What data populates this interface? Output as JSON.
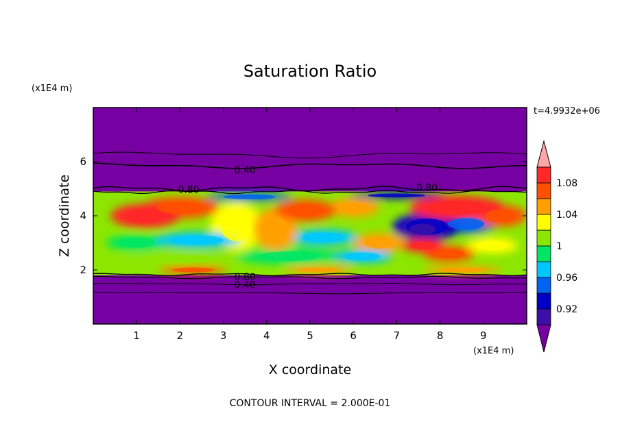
{
  "chart_data": {
    "type": "heatmap",
    "title": "Saturation Ratio",
    "xlabel": "X coordinate",
    "ylabel": "Z coordinate",
    "x_unit": "(x1E4 m)",
    "y_unit": "(x1E4 m)",
    "time_label": "t=4.9932e+06",
    "footer": "CONTOUR INTERVAL = 2.000E-01",
    "xlim": [
      0,
      10
    ],
    "ylim": [
      0,
      8
    ],
    "x_ticks": [
      1,
      2,
      3,
      4,
      5,
      6,
      7,
      8,
      9
    ],
    "y_ticks": [
      2,
      4,
      6
    ],
    "grid": false,
    "legend_position": "right",
    "background_color": "#7700A2",
    "colorbar": {
      "levels": [
        0.92,
        0.94,
        0.96,
        0.98,
        1.0,
        1.02,
        1.04,
        1.06,
        1.08
      ],
      "tick_labels": [
        "0.92",
        "0.96",
        "1",
        "1.04",
        "1.08"
      ],
      "colors": [
        "#7700A2",
        "#3C10A8",
        "#0000C8",
        "#0064F0",
        "#00C8FF",
        "#00E664",
        "#8CE600",
        "#FFFF00",
        "#FFA000",
        "#FF5000",
        "#FF2828",
        "#FFA6A6"
      ]
    },
    "contour_labels": [
      {
        "text": "0.40",
        "x": 3.5,
        "z": 5.7
      },
      {
        "text": "0.80",
        "x": 2.2,
        "z": 4.98
      },
      {
        "text": "0.80",
        "x": 7.7,
        "z": 5.05
      },
      {
        "text": "0.80",
        "x": 3.5,
        "z": 1.75
      },
      {
        "text": "0.40",
        "x": 3.5,
        "z": 1.45
      }
    ],
    "moist_layer": {
      "z_bottom": 1.8,
      "z_top": 4.9
    },
    "features": [
      {
        "x": 1.2,
        "z": 4.0,
        "rx": 0.8,
        "rz": 0.45,
        "value": 1.09
      },
      {
        "x": 2.0,
        "z": 4.3,
        "rx": 0.9,
        "rz": 0.4,
        "value": 1.07
      },
      {
        "x": 4.9,
        "z": 4.2,
        "rx": 0.7,
        "rz": 0.4,
        "value": 1.06
      },
      {
        "x": 6.0,
        "z": 4.3,
        "rx": 0.6,
        "rz": 0.35,
        "value": 1.05
      },
      {
        "x": 8.4,
        "z": 4.3,
        "rx": 1.1,
        "rz": 0.45,
        "value": 1.08
      },
      {
        "x": 9.4,
        "z": 4.0,
        "rx": 0.6,
        "rz": 0.4,
        "value": 1.06
      },
      {
        "x": 3.3,
        "z": 3.6,
        "rx": 0.6,
        "rz": 0.9,
        "value": 1.02
      },
      {
        "x": 4.2,
        "z": 3.5,
        "rx": 0.5,
        "rz": 0.8,
        "value": 1.05
      },
      {
        "x": 2.4,
        "z": 3.1,
        "rx": 1.0,
        "rz": 0.3,
        "value": 0.96
      },
      {
        "x": 1.0,
        "z": 3.0,
        "rx": 0.7,
        "rz": 0.3,
        "value": 0.98
      },
      {
        "x": 5.3,
        "z": 3.2,
        "rx": 0.8,
        "rz": 0.3,
        "value": 0.97
      },
      {
        "x": 7.7,
        "z": 3.6,
        "rx": 0.8,
        "rz": 0.5,
        "value": 0.92
      },
      {
        "x": 7.6,
        "z": 3.5,
        "rx": 0.5,
        "rz": 0.35,
        "value": 0.91
      },
      {
        "x": 8.6,
        "z": 3.7,
        "rx": 0.7,
        "rz": 0.35,
        "value": 0.95
      },
      {
        "x": 6.6,
        "z": 3.0,
        "rx": 0.6,
        "rz": 0.35,
        "value": 1.04
      },
      {
        "x": 7.6,
        "z": 2.9,
        "rx": 0.5,
        "rz": 0.25,
        "value": 1.08
      },
      {
        "x": 8.2,
        "z": 2.6,
        "rx": 0.6,
        "rz": 0.3,
        "value": 1.06
      },
      {
        "x": 9.2,
        "z": 2.9,
        "rx": 0.6,
        "rz": 0.3,
        "value": 1.03
      },
      {
        "x": 4.5,
        "z": 2.5,
        "rx": 1.2,
        "rz": 0.3,
        "value": 0.98
      },
      {
        "x": 2.0,
        "z": 2.4,
        "rx": 1.4,
        "rz": 0.25,
        "value": 1.0
      },
      {
        "x": 6.2,
        "z": 2.5,
        "rx": 0.7,
        "rz": 0.25,
        "value": 0.96
      },
      {
        "x": 2.3,
        "z": 2.0,
        "rx": 0.8,
        "rz": 0.15,
        "value": 1.06
      },
      {
        "x": 5.2,
        "z": 2.0,
        "rx": 0.8,
        "rz": 0.15,
        "value": 1.04
      },
      {
        "x": 8.5,
        "z": 2.0,
        "rx": 0.9,
        "rz": 0.15,
        "value": 1.05
      },
      {
        "x": 3.6,
        "z": 4.7,
        "rx": 1.0,
        "rz": 0.15,
        "value": 0.95
      },
      {
        "x": 7.0,
        "z": 4.75,
        "rx": 1.1,
        "rz": 0.12,
        "value": 0.93
      }
    ]
  }
}
